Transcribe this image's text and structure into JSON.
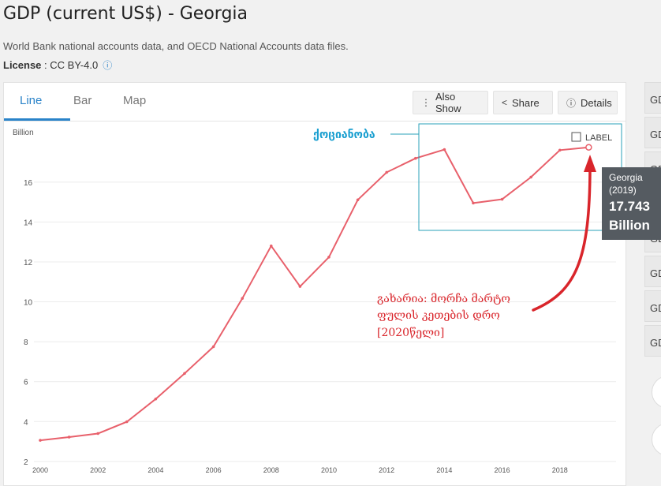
{
  "page": {
    "title": "GDP (current US$) - Georgia",
    "subtitle": "World Bank national accounts data, and OECD National Accounts data files.",
    "license_label": "License",
    "license_value": " : CC BY-4.0",
    "info_icon": "info-icon"
  },
  "tabs": [
    {
      "label": "Line"
    },
    {
      "label": "Bar"
    },
    {
      "label": "Map"
    }
  ],
  "buttons": {
    "also_show": "Also Show",
    "share": "Share",
    "details": "Details"
  },
  "side_buttons": [
    "GD",
    "GD",
    "GD",
    "GD",
    "GD",
    "GD",
    "GD",
    "GD"
  ],
  "label_checkbox": "LABEL",
  "annotations": {
    "box_label": "ქოციანობა",
    "note_line1": "გახარია: მორჩა მარტო",
    "note_line2": "ფულის კეთების დრო",
    "note_line3": "[2020წელი]"
  },
  "tooltip": {
    "line1": "Georgia",
    "line2": "(2019)",
    "value": "17.743",
    "unit": "Billion"
  },
  "colors": {
    "line": "#e8606b",
    "accent": "#2a83c9",
    "annotation_red": "#d9252b",
    "annotation_box": "#2aa0b8",
    "tooltip_bg": "#555b61"
  },
  "chart_data": {
    "type": "line",
    "ylabel": "Billion",
    "x": [
      2000,
      2001,
      2002,
      2003,
      2004,
      2005,
      2006,
      2007,
      2008,
      2009,
      2010,
      2011,
      2012,
      2013,
      2014,
      2015,
      2016,
      2017,
      2018,
      2019
    ],
    "series": [
      {
        "name": "Georgia",
        "values": [
          3.06,
          3.22,
          3.4,
          3.99,
          5.13,
          6.41,
          7.75,
          10.17,
          12.8,
          10.77,
          12.24,
          15.11,
          16.49,
          17.19,
          17.63,
          14.95,
          15.14,
          16.25,
          17.6,
          17.743
        ]
      }
    ],
    "xticks": [
      2000,
      2002,
      2004,
      2006,
      2008,
      2010,
      2012,
      2014,
      2016,
      2018
    ],
    "yticks": [
      2,
      4,
      6,
      8,
      10,
      12,
      14,
      16
    ],
    "xlim": [
      2000,
      2019.4
    ],
    "ylim": [
      1.6,
      18.8
    ],
    "grid": "y",
    "highlight": {
      "x": 2019,
      "y": 17.743
    }
  }
}
